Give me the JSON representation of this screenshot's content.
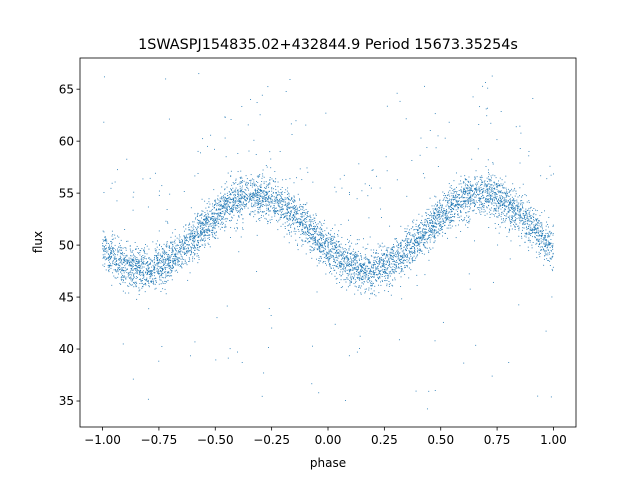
{
  "chart_data": {
    "type": "scatter",
    "title": "1SWASPJ154835.02+432844.9 Period 15673.35254s",
    "xlabel": "phase",
    "ylabel": "flux",
    "xlim": [
      -1.1,
      1.1
    ],
    "ylim": [
      32.5,
      68.0
    ],
    "xticks": [
      -1.0,
      -0.75,
      -0.5,
      -0.25,
      0.0,
      0.25,
      0.5,
      0.75,
      1.0
    ],
    "xtick_labels": [
      "−1.00",
      "−0.75",
      "−0.50",
      "−0.25",
      "0.00",
      "0.25",
      "0.50",
      "0.75",
      "1.00"
    ],
    "yticks": [
      35,
      40,
      45,
      50,
      55,
      60,
      65
    ],
    "ytick_labels": [
      "35",
      "40",
      "45",
      "50",
      "55",
      "60",
      "65"
    ],
    "grid": false,
    "marker_color": "#1f77b4",
    "series": [
      {
        "model": "sinusoid",
        "phase_range": [
          -1.0,
          1.0
        ],
        "mean_flux": 51.2,
        "amplitude": 3.6,
        "peak_phases": [
          -0.32,
          0.68
        ],
        "trough_phases": [
          -0.85,
          0.15
        ],
        "scatter_sigma": 1.0,
        "approx_points": 6000,
        "outlier_range": [
          34,
          66.5
        ]
      }
    ]
  }
}
